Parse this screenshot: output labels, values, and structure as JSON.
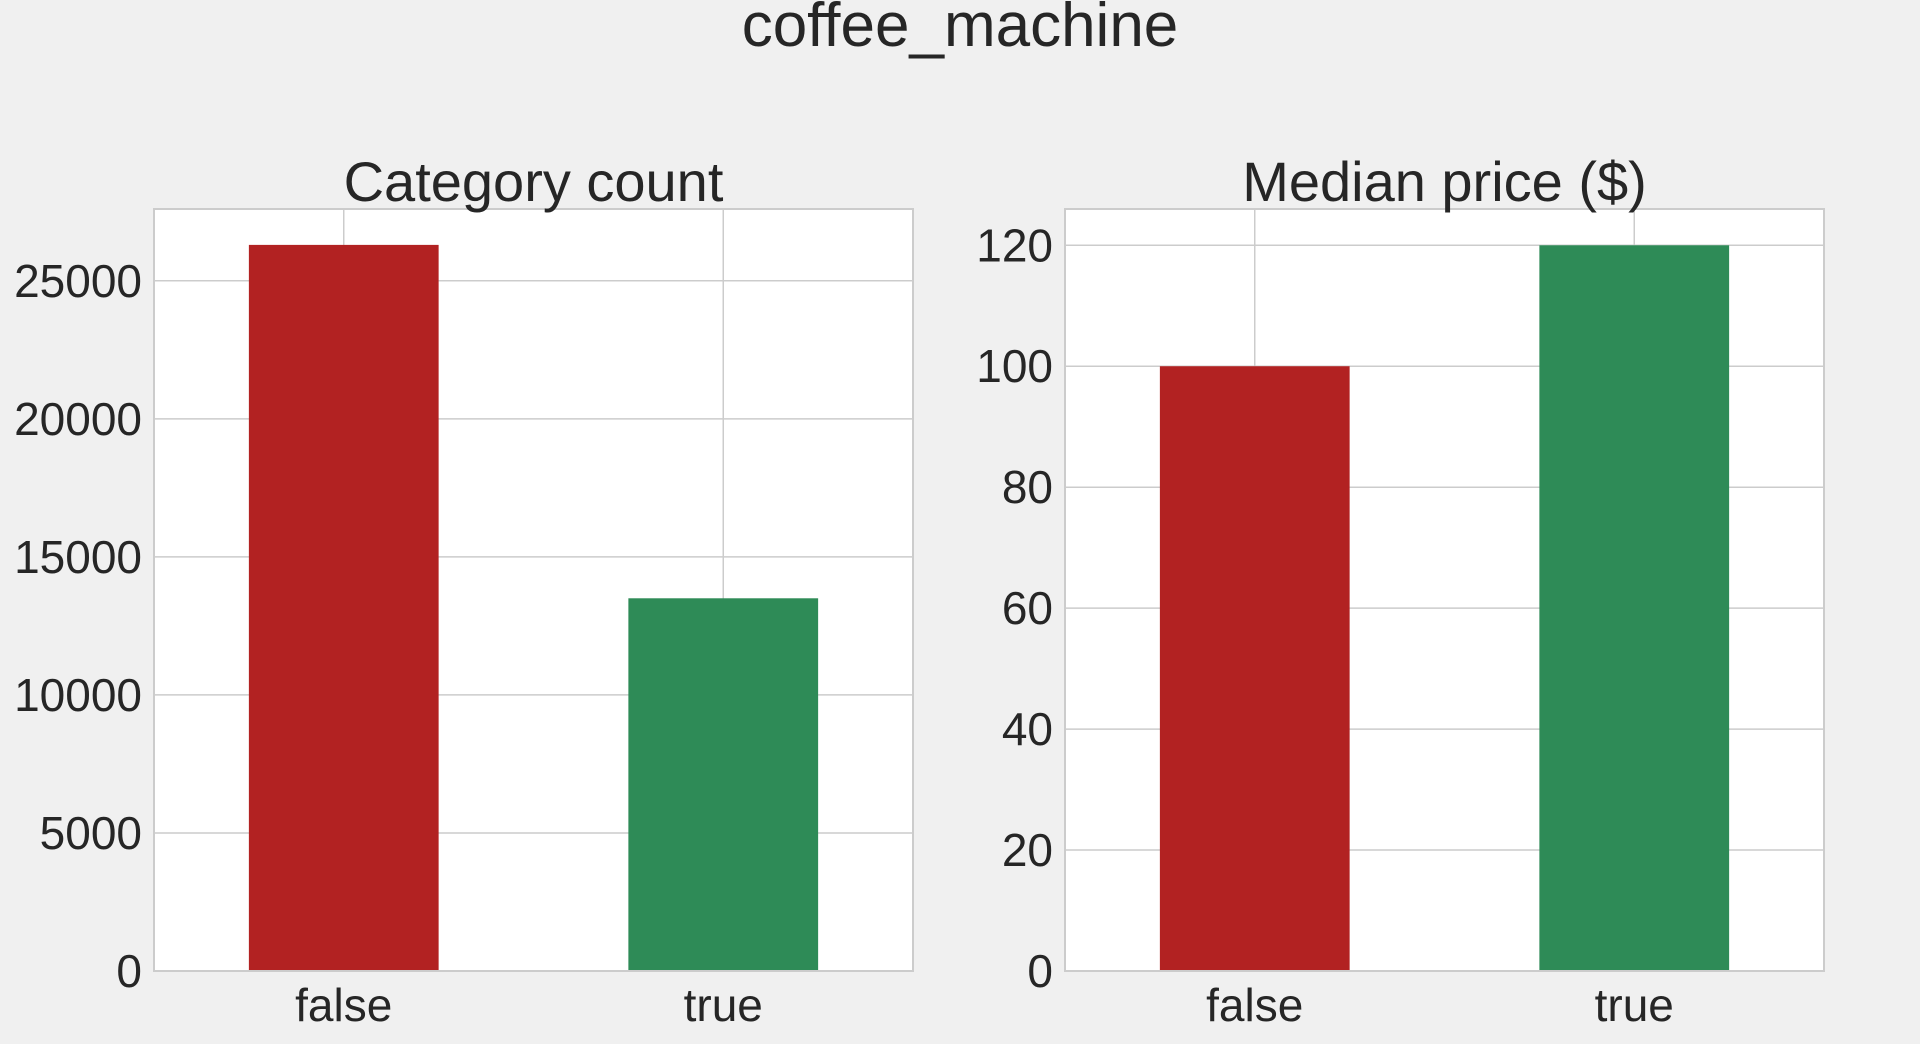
{
  "figure": {
    "title": "coffee_machine"
  },
  "colors": {
    "background": "#f0f0f0",
    "plot_background": "#ffffff",
    "grid": "#cccccc",
    "spine": "#cccccc",
    "bar_false": "#b22222",
    "bar_true": "#2e8b57"
  },
  "chart_data": [
    {
      "type": "bar",
      "title": "Category count",
      "categories": [
        "false",
        "true"
      ],
      "values": [
        26300,
        13500
      ],
      "colors": [
        "#b22222",
        "#2e8b57"
      ],
      "xlabel": "",
      "ylabel": "",
      "ylim": [
        0,
        27600
      ],
      "yticks": [
        0,
        5000,
        10000,
        15000,
        20000,
        25000
      ],
      "grid": true,
      "legend": "none"
    },
    {
      "type": "bar",
      "title": "Median price ($)",
      "categories": [
        "false",
        "true"
      ],
      "values": [
        100,
        120
      ],
      "colors": [
        "#b22222",
        "#2e8b57"
      ],
      "xlabel": "",
      "ylabel": "",
      "ylim": [
        0,
        126
      ],
      "yticks": [
        0,
        20,
        40,
        60,
        80,
        100,
        120
      ],
      "grid": true,
      "legend": "none"
    }
  ]
}
